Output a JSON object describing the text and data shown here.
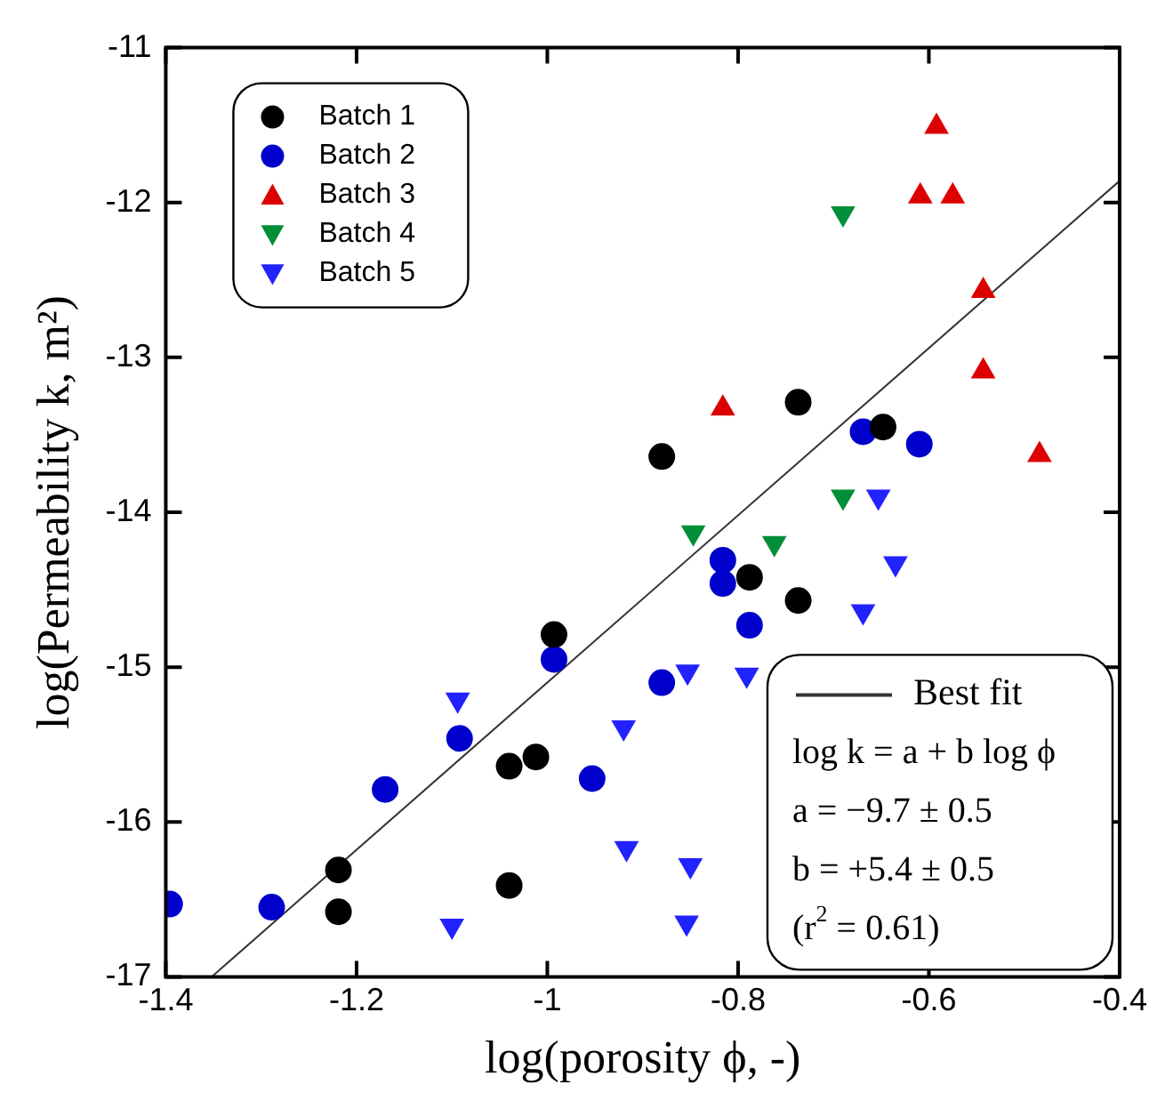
{
  "chart_data": {
    "type": "scatter",
    "xlabel": "log(porosity ϕ, -)",
    "ylabel": "log(Permeability k, m²)",
    "xlim": [
      -1.4,
      -0.4
    ],
    "ylim": [
      -17,
      -11
    ],
    "xticks": [
      -1.4,
      -1.2,
      -1,
      -0.8,
      -0.6,
      -0.4
    ],
    "yticks": [
      -17,
      -16,
      -15,
      -14,
      -13,
      -12,
      -11
    ],
    "grid": false,
    "legend": "top left",
    "series": [
      {
        "name": "Batch 1",
        "color": "#000000",
        "marker": "circle",
        "x": [
          -0.993,
          -1.04,
          -1.012,
          -1.219,
          -1.219,
          -1.04,
          -0.737,
          -0.88,
          -0.648,
          -0.788,
          -0.737
        ],
        "values": [
          -14.79,
          -15.64,
          -15.58,
          -16.31,
          -16.58,
          -16.41,
          -13.29,
          -13.64,
          -13.45,
          -14.42,
          -14.57
        ]
      },
      {
        "name": "Batch 2",
        "color": "#0000cc",
        "marker": "circle",
        "x": [
          -1.396,
          -1.289,
          -1.17,
          -1.092,
          -0.993,
          -0.953,
          -0.88,
          -0.788,
          -0.816,
          -0.816,
          -0.669,
          -0.61
        ],
        "values": [
          -16.53,
          -16.55,
          -15.79,
          -15.46,
          -14.95,
          -15.72,
          -15.1,
          -14.73,
          -14.31,
          -14.46,
          -13.48,
          -13.56
        ]
      },
      {
        "name": "Batch 3",
        "color": "#dd0000",
        "marker": "triangle",
        "x": [
          -0.592,
          -0.609,
          -0.575,
          -0.543,
          -0.543,
          -0.816,
          -0.484
        ],
        "values": [
          -11.51,
          -11.96,
          -11.96,
          -12.57,
          -13.09,
          -13.33,
          -13.63
        ]
      },
      {
        "name": "Batch 4",
        "color": "#008f39",
        "marker": "triangle-down",
        "x": [
          -0.69,
          -0.69,
          -0.847,
          -0.762
        ],
        "values": [
          -12.07,
          -13.9,
          -14.13,
          -14.2
        ]
      },
      {
        "name": "Batch 5",
        "color": "#2222ff",
        "marker": "triangle-down",
        "x": [
          -1.094,
          -0.92,
          -0.917,
          -1.1,
          -0.853,
          -0.791,
          -0.653,
          -0.635,
          -0.669,
          -0.85,
          -0.854
        ],
        "values": [
          -15.21,
          -15.39,
          -16.17,
          -16.67,
          -15.03,
          -15.05,
          -13.9,
          -14.33,
          -14.64,
          -16.28,
          -16.65
        ]
      },
      {
        "name": "Best fit",
        "type": "line",
        "color": "#333333",
        "marker": "none",
        "line_style": "solid",
        "x": [
          -1.352,
          -0.4
        ],
        "values": [
          -17,
          -11.86
        ]
      }
    ],
    "annotations": [
      "log k = a + b log ϕ",
      "a = −9.7 ± 0.5",
      "b = +5.4 ± 0.5",
      "(r$^{2}$ = 0.61)"
    ]
  }
}
